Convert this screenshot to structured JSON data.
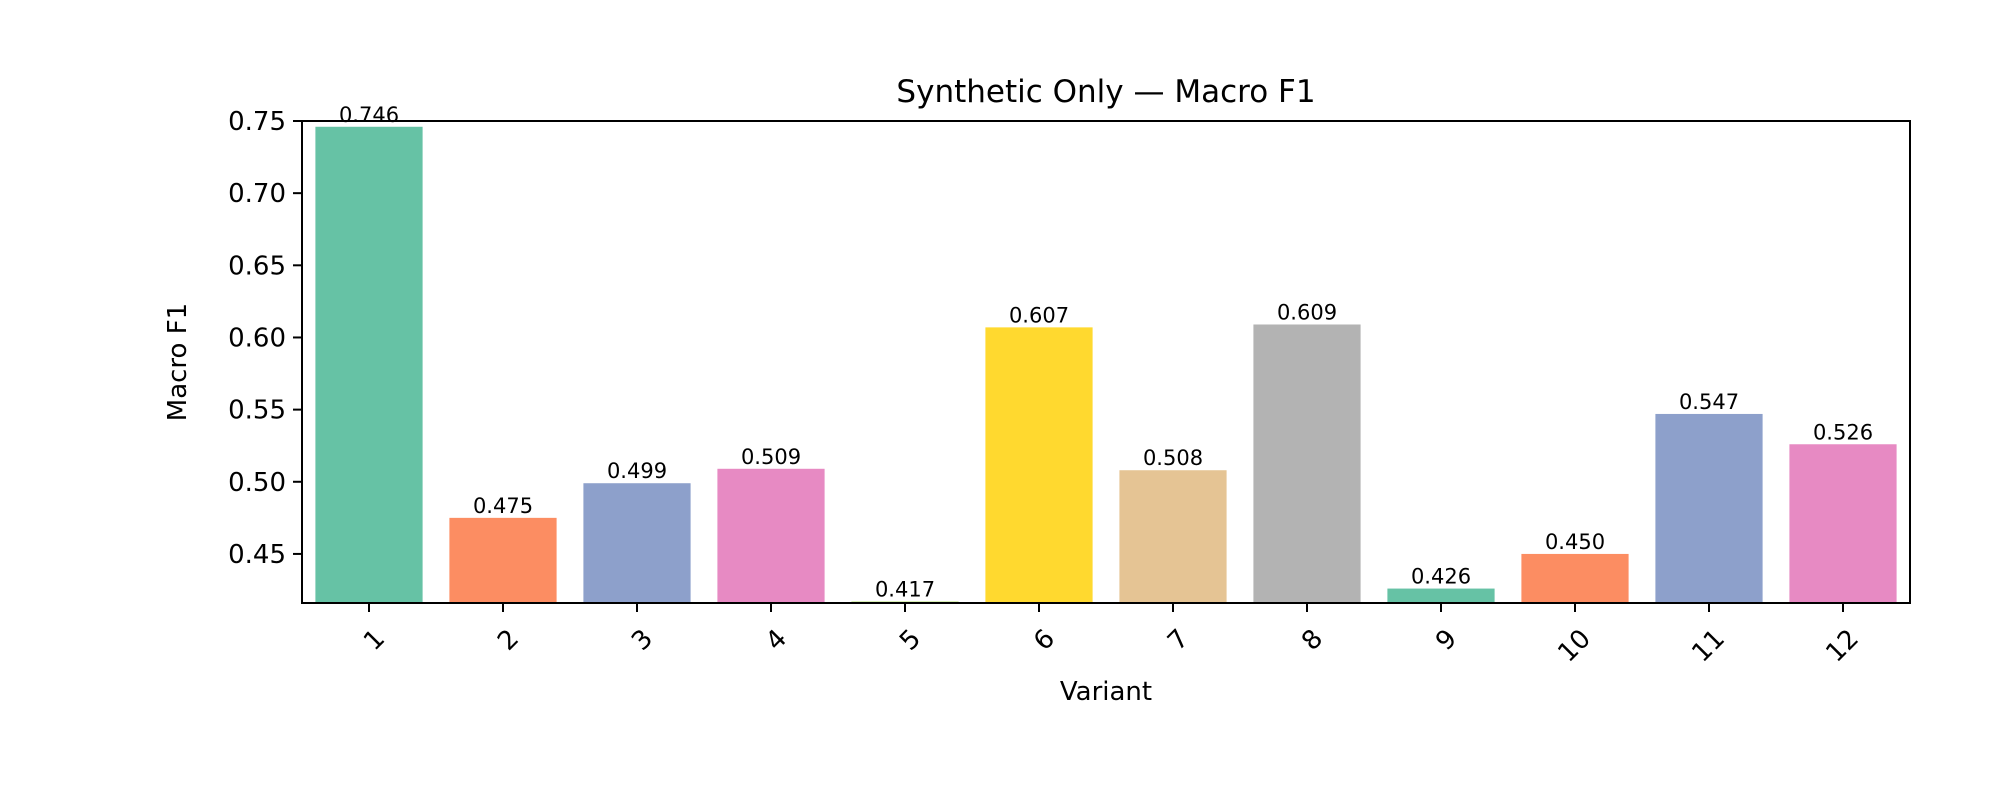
{
  "chart_data": {
    "type": "bar",
    "title": "Synthetic Only — Macro F1",
    "xlabel": "Variant",
    "ylabel": "Macro F1",
    "categories": [
      "1",
      "2",
      "3",
      "4",
      "5",
      "6",
      "7",
      "8",
      "9",
      "10",
      "11",
      "12"
    ],
    "values": [
      0.746,
      0.475,
      0.499,
      0.509,
      0.417,
      0.607,
      0.508,
      0.609,
      0.426,
      0.45,
      0.547,
      0.526
    ],
    "value_labels": [
      "0.746",
      "0.475",
      "0.499",
      "0.509",
      "0.417",
      "0.607",
      "0.508",
      "0.609",
      "0.426",
      "0.450",
      "0.547",
      "0.526"
    ],
    "ylim": [
      0.416,
      0.75
    ],
    "yticks": [
      0.45,
      0.5,
      0.55,
      0.6,
      0.65,
      0.7,
      0.75
    ],
    "ytick_labels": [
      "0.45",
      "0.50",
      "0.55",
      "0.60",
      "0.65",
      "0.70",
      "0.75"
    ],
    "colors": [
      "#66c2a5",
      "#fc8d62",
      "#8da0cb",
      "#e78ac3",
      "#a6d854",
      "#ffd92f",
      "#e5c494",
      "#b3b3b3",
      "#66c2a5",
      "#fc8d62",
      "#8da0cb",
      "#e78ac3"
    ],
    "grid": false,
    "legend": "none"
  }
}
